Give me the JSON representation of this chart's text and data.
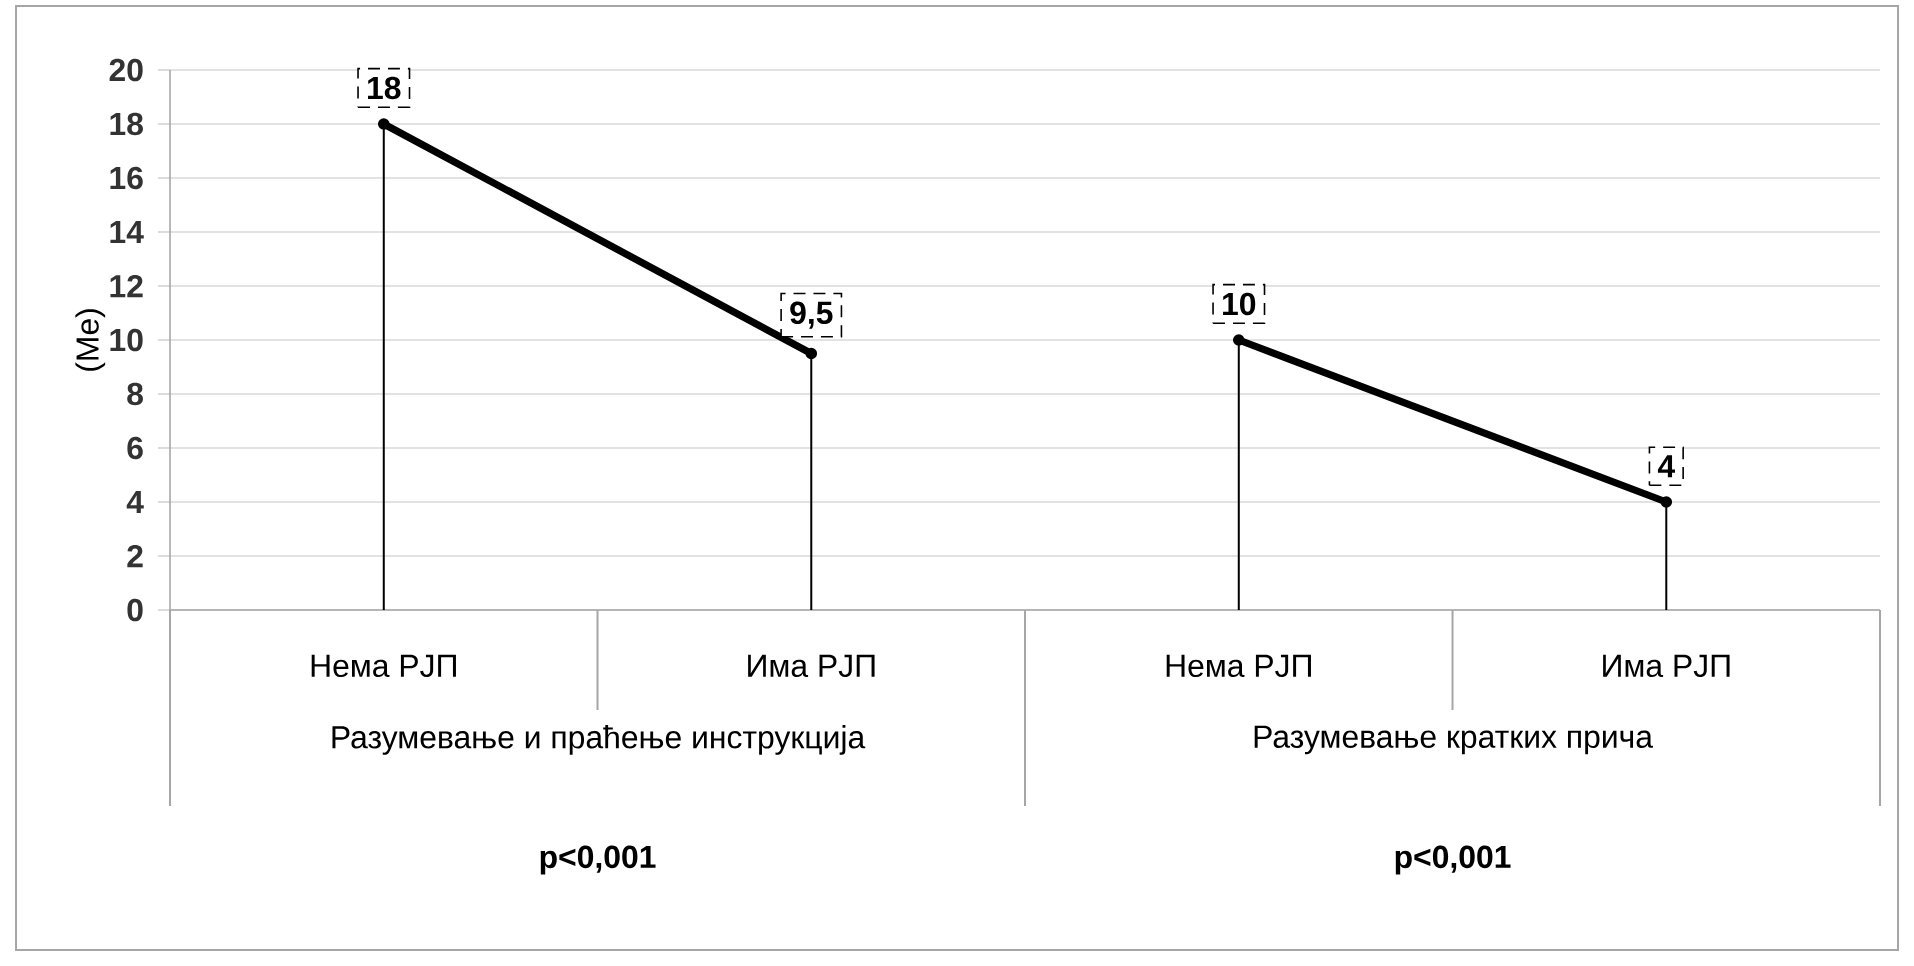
{
  "chart_data": {
    "type": "line",
    "categories": [
      "Нема РЈП",
      "Има РЈП",
      "Нема РЈП",
      "Има РЈП"
    ],
    "series": [
      {
        "color": "#000000",
        "values": [
          18,
          9.5,
          null,
          null
        ],
        "value_labels": [
          "18",
          "9,5",
          null,
          null
        ]
      },
      {
        "color": "#000000",
        "values": [
          null,
          null,
          10,
          4
        ],
        "value_labels": [
          null,
          null,
          "10",
          "4"
        ]
      },
      {
        "type": "lollipop",
        "color": "#000000",
        "values": [
          18,
          9.5,
          10,
          4
        ]
      }
    ],
    "ylabel": "(Me)",
    "ylim": [
      0,
      20
    ],
    "yticks": [
      0,
      2,
      4,
      6,
      8,
      10,
      12,
      14,
      16,
      18,
      20
    ],
    "grid": "y",
    "line_style": "solid",
    "annotations": [
      "Разумевање и праћење инструкција",
      "Разумевање кратких прича",
      "p<0,001",
      "p<0,001"
    ]
  }
}
